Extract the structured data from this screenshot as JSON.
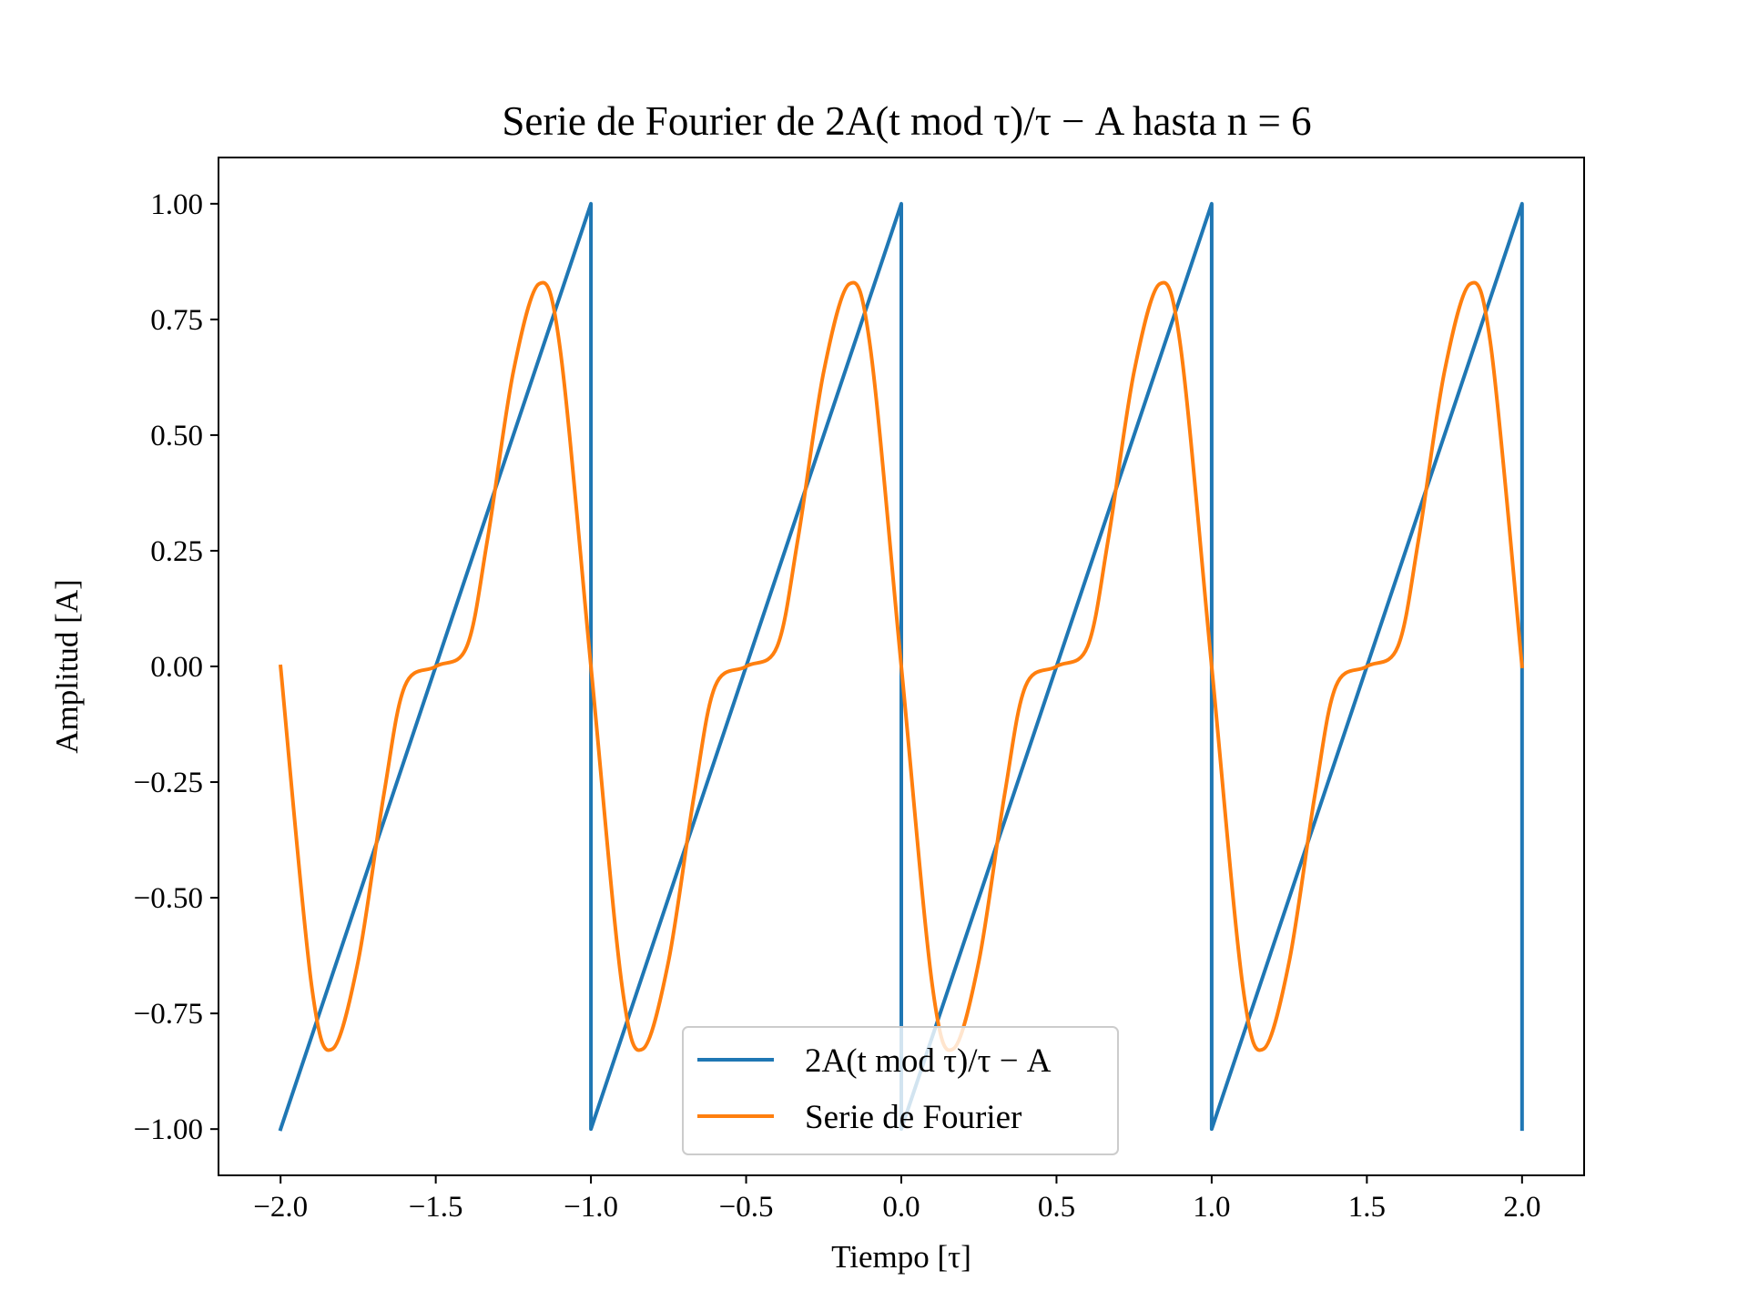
{
  "chart_data": {
    "type": "line",
    "title": "Serie de Fourier de 2A(t mod τ)/τ − A hasta n = 6",
    "xlabel": "Tiempo [τ]",
    "ylabel": "Amplitud [A]",
    "xlim": [
      -2.2,
      2.2
    ],
    "ylim": [
      -1.1,
      1.1
    ],
    "xticks": [
      -2.0,
      -1.5,
      -1.0,
      -0.5,
      0.0,
      0.5,
      1.0,
      1.5,
      2.0
    ],
    "xtick_labels": [
      "−2.0",
      "−1.5",
      "−1.0",
      "−0.5",
      "0.0",
      "0.5",
      "1.0",
      "1.5",
      "2.0"
    ],
    "yticks": [
      1.0,
      0.75,
      0.5,
      0.25,
      0.0,
      -0.25,
      -0.5,
      -0.75,
      -1.0
    ],
    "ytick_labels": [
      "1.00",
      "0.75",
      "0.50",
      "0.25",
      "0.00",
      "−0.25",
      "−0.50",
      "−0.75",
      "−1.00"
    ],
    "grid": false,
    "legend_position": "lower center",
    "series": [
      {
        "name": "2A(t mod τ)/τ − A",
        "color": "#1f77b4",
        "x": [
          -2.0,
          -1.0,
          -1.0,
          0.0,
          0.0,
          1.0,
          1.0,
          2.0,
          2.0
        ],
        "y": [
          -1.0,
          1.0,
          -1.0,
          1.0,
          -1.0,
          1.0,
          -1.0,
          1.0,
          -1.0
        ]
      },
      {
        "name": "Serie de Fourier",
        "color": "#ff7f0e",
        "x": [
          -2.0,
          -1.9,
          -1.833,
          -1.75,
          -1.667,
          -1.6,
          -1.5,
          -1.4,
          -1.333,
          -1.25,
          -1.167,
          -1.1,
          -1.0,
          -0.9,
          -0.833,
          -0.75,
          -0.667,
          -0.6,
          -0.5,
          -0.4,
          -0.333,
          -0.25,
          -0.167,
          -0.1,
          0.0,
          0.1,
          0.167,
          0.25,
          0.333,
          0.4,
          0.5,
          0.6,
          0.667,
          0.75,
          0.833,
          0.9,
          1.0,
          1.1,
          1.167,
          1.25,
          1.333,
          1.4,
          1.5,
          1.6,
          1.667,
          1.75,
          1.833,
          1.9,
          2.0
        ],
        "y": [
          0.0,
          -0.69,
          -0.827,
          -0.637,
          -0.276,
          -0.043,
          0.0,
          0.043,
          0.276,
          0.637,
          0.827,
          0.69,
          0.0,
          -0.69,
          -0.827,
          -0.637,
          -0.276,
          -0.043,
          0.0,
          0.043,
          0.276,
          0.637,
          0.827,
          0.69,
          0.0,
          -0.69,
          -0.827,
          -0.637,
          -0.276,
          -0.043,
          0.0,
          0.043,
          0.276,
          0.637,
          0.827,
          0.69,
          0.0,
          -0.69,
          -0.827,
          -0.637,
          -0.276,
          -0.043,
          0.0,
          0.043,
          0.276,
          0.637,
          0.827,
          0.69,
          0.0
        ]
      }
    ]
  }
}
